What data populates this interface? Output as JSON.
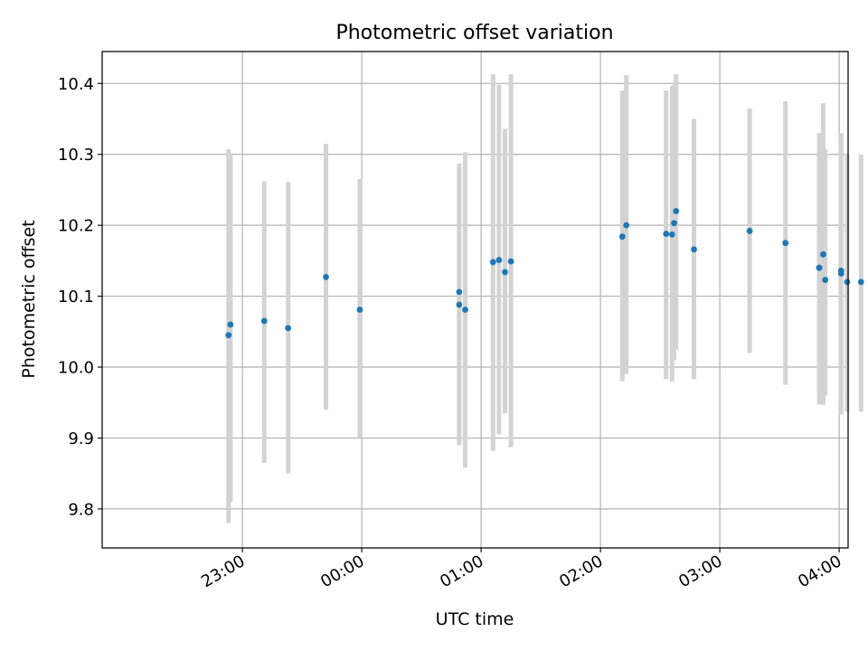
{
  "chart_data": {
    "type": "scatter",
    "title": "Photometric offset variation",
    "xlabel": "UTC time",
    "ylabel": "Photometric offset",
    "x_format": "HH:MM (minutes after 22:00)",
    "xlim": [
      -10.5,
      364.5
    ],
    "ylim": [
      9.745,
      10.445
    ],
    "xticks": [
      {
        "label": "23:00",
        "value": 60
      },
      {
        "label": "00:00",
        "value": 120
      },
      {
        "label": "01:00",
        "value": 180
      },
      {
        "label": "02:00",
        "value": 240
      },
      {
        "label": "03:00",
        "value": 300
      },
      {
        "label": "04:00",
        "value": 360
      }
    ],
    "yticks": [
      {
        "label": "9.8",
        "value": 9.8
      },
      {
        "label": "9.9",
        "value": 9.9
      },
      {
        "label": "10.0",
        "value": 10.0
      },
      {
        "label": "10.1",
        "value": 10.1
      },
      {
        "label": "10.2",
        "value": 10.2
      },
      {
        "label": "10.3",
        "value": 10.3
      },
      {
        "label": "10.4",
        "value": 10.4
      }
    ],
    "grid": true,
    "marker_color": "#1f77b4",
    "errorbar_color": "#d3d3d3",
    "series": [
      {
        "x": [
          "22:53",
          "22:54",
          "23:11",
          "23:23",
          "23:42",
          "23:59",
          "00:49",
          "00:49",
          "00:52",
          "01:06",
          "01:09",
          "01:12",
          "01:15",
          "02:11",
          "02:13",
          "02:33",
          "02:36",
          "02:37",
          "02:38",
          "02:47",
          "03:15",
          "03:33",
          "03:50",
          "03:50",
          "03:52",
          "03:53",
          "04:01",
          "04:01",
          "04:04",
          "04:11"
        ],
        "y": [
          10.045,
          10.06,
          10.065,
          10.055,
          10.127,
          10.081,
          10.106,
          10.088,
          10.081,
          10.148,
          10.151,
          10.134,
          10.149,
          10.184,
          10.2,
          10.188,
          10.187,
          10.203,
          10.22,
          10.166,
          10.192,
          10.175,
          10.14,
          10.14,
          10.159,
          10.123,
          10.136,
          10.132,
          10.12,
          10.12
        ],
        "y_low": [
          9.78,
          9.81,
          9.865,
          9.85,
          9.94,
          9.9,
          9.89,
          9.89,
          9.858,
          9.882,
          9.905,
          9.935,
          9.887,
          9.98,
          9.99,
          9.983,
          9.98,
          10.01,
          10.025,
          9.983,
          10.02,
          9.975,
          9.947,
          9.97,
          9.947,
          9.96,
          9.96,
          9.933,
          9.937,
          9.937
        ],
        "y_high": [
          10.307,
          10.3,
          10.262,
          10.261,
          10.315,
          10.265,
          10.287,
          10.287,
          10.303,
          10.413,
          10.398,
          10.336,
          10.413,
          10.39,
          10.412,
          10.39,
          10.396,
          10.398,
          10.413,
          10.35,
          10.365,
          10.375,
          10.33,
          10.307,
          10.372,
          10.307,
          10.307,
          10.33,
          10.3,
          10.3
        ]
      }
    ]
  }
}
